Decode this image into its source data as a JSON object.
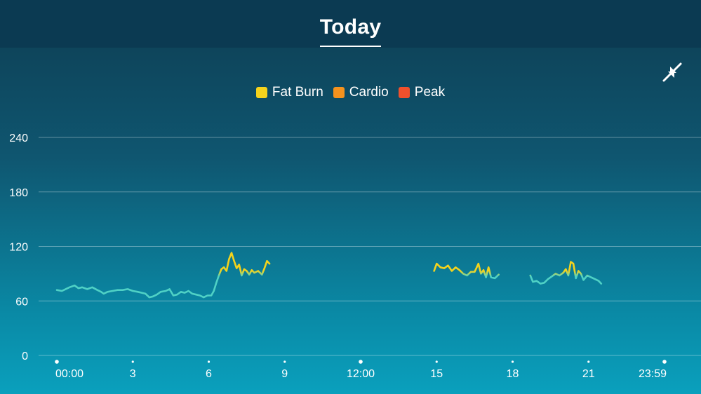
{
  "header": {
    "title": "Today"
  },
  "colors": {
    "resting": "#4fd1c5",
    "fat_burn": "#f5d31c",
    "cardio": "#f5921e",
    "peak": "#f1502c"
  },
  "icons": {
    "collapse": "collapse-arrows-icon"
  },
  "chart_data": {
    "type": "line",
    "legend": [
      {
        "label": "Fat Burn",
        "color": "#f5d31c"
      },
      {
        "label": "Cardio",
        "color": "#f5921e"
      },
      {
        "label": "Peak",
        "color": "#f1502c"
      }
    ],
    "ylim": [
      0,
      240
    ],
    "yticks": [
      0,
      60,
      120,
      180,
      240
    ],
    "xlim": [
      0,
      24
    ],
    "xticks": [
      {
        "x": 0,
        "label": "00:00",
        "dot": "large"
      },
      {
        "x": 3,
        "label": "3",
        "dot": "small"
      },
      {
        "x": 6,
        "label": "6",
        "dot": "small"
      },
      {
        "x": 9,
        "label": "9",
        "dot": "small"
      },
      {
        "x": 12,
        "label": "12:00",
        "dot": "large"
      },
      {
        "x": 15,
        "label": "15",
        "dot": "small"
      },
      {
        "x": 18,
        "label": "18",
        "dot": "small"
      },
      {
        "x": 21,
        "label": "21",
        "dot": "small"
      },
      {
        "x": 24,
        "label": "23:59",
        "dot": "large"
      }
    ],
    "fat_burn_threshold": 90,
    "series": [
      {
        "points": [
          [
            0.0,
            72
          ],
          [
            0.2,
            71
          ],
          [
            0.35,
            73
          ],
          [
            0.5,
            75
          ],
          [
            0.7,
            77
          ],
          [
            0.85,
            74
          ],
          [
            1.0,
            75
          ],
          [
            1.2,
            73
          ],
          [
            1.4,
            75
          ],
          [
            1.6,
            72
          ],
          [
            1.75,
            70
          ],
          [
            1.85,
            68
          ],
          [
            2.0,
            70
          ],
          [
            2.2,
            71
          ],
          [
            2.4,
            72
          ],
          [
            2.6,
            72
          ],
          [
            2.8,
            73
          ],
          [
            3.0,
            71
          ],
          [
            3.2,
            70
          ],
          [
            3.35,
            69
          ],
          [
            3.5,
            68
          ],
          [
            3.65,
            64
          ],
          [
            3.8,
            65
          ],
          [
            3.95,
            67
          ],
          [
            4.1,
            70
          ],
          [
            4.3,
            71
          ],
          [
            4.45,
            73
          ],
          [
            4.6,
            66
          ],
          [
            4.75,
            67
          ],
          [
            4.9,
            70
          ],
          [
            5.05,
            69
          ],
          [
            5.2,
            71
          ],
          [
            5.35,
            68
          ],
          [
            5.5,
            67
          ],
          [
            5.65,
            66
          ],
          [
            5.8,
            64
          ],
          [
            5.95,
            66
          ],
          [
            6.1,
            66
          ],
          [
            6.2,
            71
          ],
          [
            6.3,
            80
          ],
          [
            6.4,
            88
          ],
          [
            6.5,
            95
          ],
          [
            6.6,
            97
          ],
          [
            6.7,
            93
          ],
          [
            6.8,
            106
          ],
          [
            6.9,
            113
          ],
          [
            7.0,
            104
          ],
          [
            7.1,
            96
          ],
          [
            7.2,
            100
          ],
          [
            7.3,
            88
          ],
          [
            7.4,
            95
          ],
          [
            7.5,
            93
          ],
          [
            7.6,
            89
          ],
          [
            7.7,
            94
          ],
          [
            7.8,
            91
          ],
          [
            7.95,
            93
          ],
          [
            8.1,
            89
          ],
          [
            8.2,
            96
          ],
          [
            8.3,
            104
          ],
          [
            8.4,
            101
          ]
        ]
      },
      {
        "points": [
          [
            14.9,
            93
          ],
          [
            15.0,
            101
          ],
          [
            15.15,
            97
          ],
          [
            15.3,
            96
          ],
          [
            15.45,
            99
          ],
          [
            15.6,
            93
          ],
          [
            15.75,
            97
          ],
          [
            15.9,
            94
          ],
          [
            16.05,
            90
          ],
          [
            16.2,
            88
          ],
          [
            16.35,
            92
          ],
          [
            16.5,
            92
          ],
          [
            16.65,
            101
          ],
          [
            16.75,
            90
          ],
          [
            16.85,
            94
          ],
          [
            16.95,
            86
          ],
          [
            17.05,
            97
          ],
          [
            17.15,
            86
          ],
          [
            17.3,
            85
          ],
          [
            17.45,
            89
          ]
        ]
      },
      {
        "points": [
          [
            18.7,
            88
          ],
          [
            18.8,
            81
          ],
          [
            18.95,
            82
          ],
          [
            19.1,
            79
          ],
          [
            19.25,
            80
          ],
          [
            19.4,
            84
          ],
          [
            19.55,
            87
          ],
          [
            19.7,
            90
          ],
          [
            19.85,
            88
          ],
          [
            20.0,
            91
          ],
          [
            20.1,
            95
          ],
          [
            20.2,
            88
          ],
          [
            20.3,
            103
          ],
          [
            20.4,
            101
          ],
          [
            20.5,
            85
          ],
          [
            20.6,
            93
          ],
          [
            20.7,
            90
          ],
          [
            20.8,
            83
          ],
          [
            20.95,
            88
          ],
          [
            21.1,
            86
          ],
          [
            21.25,
            84
          ],
          [
            21.4,
            82
          ],
          [
            21.5,
            79
          ]
        ]
      }
    ]
  }
}
